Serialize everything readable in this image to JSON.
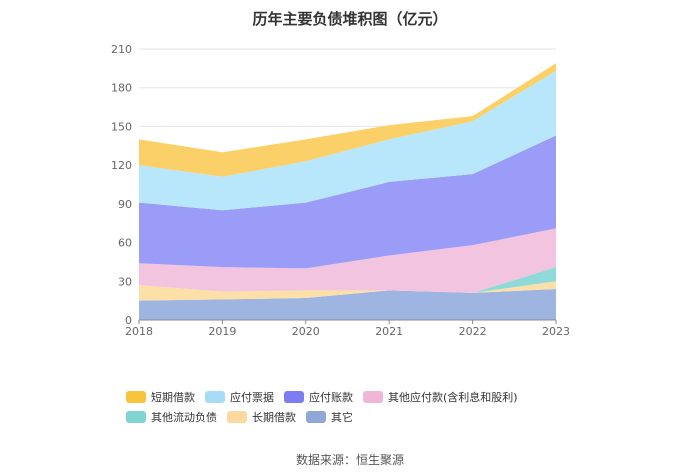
{
  "chart_data": {
    "type": "area",
    "stacked": true,
    "title": "历年主要负债堆积图（亿元）",
    "xlabel": "",
    "ylabel": "",
    "x": [
      "2018",
      "2019",
      "2020",
      "2021",
      "2022",
      "2023"
    ],
    "ylim": [
      0,
      210
    ],
    "yticks": [
      0,
      30,
      60,
      90,
      120,
      150,
      180,
      210
    ],
    "grid": true,
    "legend_position": "bottom",
    "series": [
      {
        "name": "其它",
        "color": "#9db5e0",
        "values": [
          15,
          16,
          17,
          23,
          21,
          24
        ]
      },
      {
        "name": "长期借款",
        "color": "#fde0a8",
        "values": [
          12,
          6,
          6,
          0,
          0,
          6
        ]
      },
      {
        "name": "其他流动负债",
        "color": "#8fd9d9",
        "values": [
          0,
          0,
          0,
          0,
          0,
          11
        ]
      },
      {
        "name": "其他应付款(含利息和股利)",
        "color": "#f2c4e0",
        "values": [
          17,
          19,
          17,
          27,
          37,
          30
        ]
      },
      {
        "name": "应付账款",
        "color": "#9b9cf7",
        "values": [
          47,
          44,
          51,
          57,
          55,
          72
        ]
      },
      {
        "name": "应付票据",
        "color": "#b8e6fb",
        "values": [
          29,
          26,
          32,
          33,
          41,
          50
        ]
      },
      {
        "name": "短期借款",
        "color": "#fcd068",
        "values": [
          20,
          19,
          17,
          11,
          4,
          6
        ]
      }
    ]
  },
  "legend": [
    {
      "label": "短期借款",
      "color": "#f8c43e"
    },
    {
      "label": "应付票据",
      "color": "#a5dcf8"
    },
    {
      "label": "应付账款",
      "color": "#7b7df0"
    },
    {
      "label": "其他应付款(含利息和股利)",
      "color": "#efb6d8"
    },
    {
      "label": "其他流动负债",
      "color": "#80d4d4"
    },
    {
      "label": "长期借款",
      "color": "#fdd9a0"
    },
    {
      "label": "其它",
      "color": "#8fa8d8"
    }
  ],
  "source_note": "数据来源：恒生聚源"
}
